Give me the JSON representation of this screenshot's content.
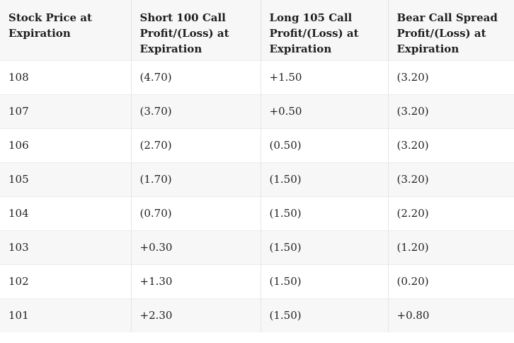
{
  "table": {
    "headers": [
      "Stock Price at Expiration",
      "Short 100 Call Profit/(Loss) at Expiration",
      "Long 105 Call Profit/(Loss) at Expiration",
      "Bear Call Spread Profit/(Loss) at Expiration"
    ],
    "rows": [
      [
        "108",
        "(4.70)",
        "+1.50",
        "(3.20)"
      ],
      [
        "107",
        "(3.70)",
        "+0.50",
        "(3.20)"
      ],
      [
        "106",
        "(2.70)",
        "(0.50)",
        "(3.20)"
      ],
      [
        "105",
        "(1.70)",
        "(1.50)",
        "(3.20)"
      ],
      [
        "104",
        "(0.70)",
        "(1.50)",
        "(2.20)"
      ],
      [
        "103",
        "+0.30",
        "(1.50)",
        "(1.20)"
      ],
      [
        "102",
        "+1.30",
        "(1.50)",
        "(0.20)"
      ],
      [
        "101",
        "+2.30",
        "(1.50)",
        "+0.80"
      ]
    ]
  }
}
